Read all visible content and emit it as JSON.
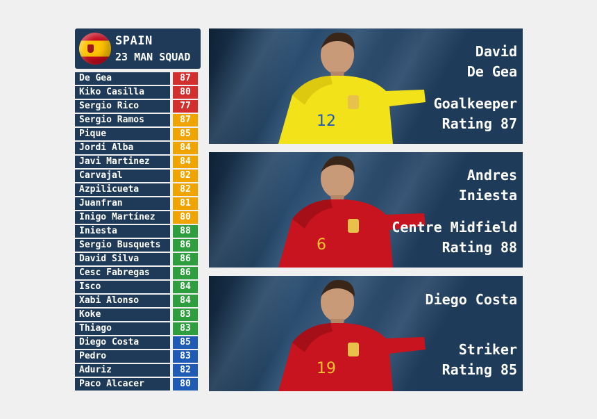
{
  "squad": {
    "country": "SPAIN",
    "subtitle": "23 MAN SQUAD",
    "flag_icon": "spain-flag-icon",
    "players": [
      {
        "name": "De Gea",
        "rating": "87",
        "color": "#d32f2f"
      },
      {
        "name": "Kiko Casilla",
        "rating": "80",
        "color": "#d32f2f"
      },
      {
        "name": "Sergio Rico",
        "rating": "77",
        "color": "#d32f2f"
      },
      {
        "name": "Sergio Ramos",
        "rating": "87",
        "color": "#f0a400"
      },
      {
        "name": "Pique",
        "rating": "85",
        "color": "#f0a400"
      },
      {
        "name": "Jordi Alba",
        "rating": "84",
        "color": "#f0a400"
      },
      {
        "name": "Javi Martinez",
        "rating": "84",
        "color": "#f0a400"
      },
      {
        "name": "Carvajal",
        "rating": "82",
        "color": "#f0a400"
      },
      {
        "name": "Azpilicueta",
        "rating": "82",
        "color": "#f0a400"
      },
      {
        "name": "Juanfran",
        "rating": "81",
        "color": "#f0a400"
      },
      {
        "name": "Inigo Martínez",
        "rating": "80",
        "color": "#f0a400"
      },
      {
        "name": "Iniesta",
        "rating": "88",
        "color": "#2e9e3e"
      },
      {
        "name": "Sergio Busquets",
        "rating": "86",
        "color": "#2e9e3e"
      },
      {
        "name": "David Silva",
        "rating": "86",
        "color": "#2e9e3e"
      },
      {
        "name": "Cesc Fabregas",
        "rating": "86",
        "color": "#2e9e3e"
      },
      {
        "name": "Isco",
        "rating": "84",
        "color": "#2e9e3e"
      },
      {
        "name": "Xabi Alonso",
        "rating": "84",
        "color": "#2e9e3e"
      },
      {
        "name": "Koke",
        "rating": "83",
        "color": "#2e9e3e"
      },
      {
        "name": "Thiago",
        "rating": "83",
        "color": "#2e9e3e"
      },
      {
        "name": "Diego Costa",
        "rating": "85",
        "color": "#1f5bb5"
      },
      {
        "name": "Pedro",
        "rating": "83",
        "color": "#1f5bb5"
      },
      {
        "name": "Aduriz",
        "rating": "82",
        "color": "#1f5bb5"
      },
      {
        "name": "Paco Alcacer",
        "rating": "80",
        "color": "#1f5bb5"
      }
    ]
  },
  "cards": [
    {
      "line1": "David",
      "line2": "De Gea",
      "position": "Goalkeeper",
      "rating": "Rating 87",
      "number": "12",
      "kit": "#f2e21a",
      "kit_dark": "#cdb90a"
    },
    {
      "line1": "Andres",
      "line2": "Iniesta",
      "position": "Centre Midfield",
      "rating": "Rating 88",
      "number": "6",
      "kit": "#c8141e",
      "kit_dark": "#8e0c14"
    },
    {
      "line1": "Diego Costa",
      "line2": "",
      "position": "Striker",
      "rating": "Rating 85",
      "number": "19",
      "kit": "#c8141e",
      "kit_dark": "#8e0c14"
    }
  ]
}
